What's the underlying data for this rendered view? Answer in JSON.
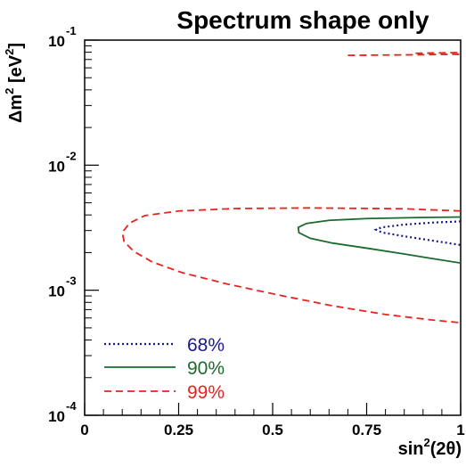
{
  "chart_data": {
    "type": "line",
    "title": "Spectrum shape only",
    "xlabel": {
      "base": "sin",
      "sup": "2",
      "rest": "(2θ)"
    },
    "ylabel": {
      "delta": "Δm",
      "sup1": "2",
      "mid": " [eV",
      "sup2": "2",
      "end": "]"
    },
    "xlim": [
      0,
      1
    ],
    "ylim": [
      0.0001,
      0.1
    ],
    "yscale": "log",
    "x_ticks": [
      {
        "value": 0,
        "label": "0"
      },
      {
        "value": 0.25,
        "label": "0.25"
      },
      {
        "value": 0.5,
        "label": "0.5"
      },
      {
        "value": 0.75,
        "label": "0.75"
      },
      {
        "value": 1,
        "label": "1"
      }
    ],
    "y_ticks": [
      {
        "value": 0.1,
        "base": "10",
        "exp": "-1"
      },
      {
        "value": 0.01,
        "base": "10",
        "exp": "-2"
      },
      {
        "value": 0.001,
        "base": "10",
        "exp": "-3"
      },
      {
        "value": 0.0001,
        "base": "10",
        "exp": "-4"
      }
    ],
    "legend_position": "bottom-left",
    "series": [
      {
        "name": "68%",
        "color": "#1a1a8c",
        "style": "dotted",
        "label_color": "#1a1a8c",
        "segments": [
          [
            [
              1.0,
              0.00355
            ],
            [
              0.93,
              0.00348
            ],
            [
              0.85,
              0.00335
            ],
            [
              0.79,
              0.00318
            ],
            [
              0.775,
              0.00305
            ],
            [
              0.79,
              0.0029
            ],
            [
              0.85,
              0.0027
            ],
            [
              0.93,
              0.00248
            ],
            [
              1.0,
              0.0023
            ]
          ]
        ]
      },
      {
        "name": "90%",
        "color": "#1a6b2e",
        "style": "solid",
        "label_color": "#1a6b2e",
        "segments": [
          [
            [
              1.0,
              0.00385
            ],
            [
              0.9,
              0.00382
            ],
            [
              0.75,
              0.00374
            ],
            [
              0.65,
              0.00362
            ],
            [
              0.59,
              0.00342
            ],
            [
              0.568,
              0.00318
            ],
            [
              0.57,
              0.00288
            ],
            [
              0.6,
              0.0026
            ],
            [
              0.66,
              0.00238
            ],
            [
              0.75,
              0.00217
            ],
            [
              0.85,
              0.00195
            ],
            [
              0.93,
              0.00178
            ],
            [
              1.0,
              0.00165
            ]
          ]
        ]
      },
      {
        "name": "99%",
        "color": "#e8231f",
        "style": "dashed",
        "label_color": "#e8231f",
        "segments": [
          [
            [
              1.0,
              0.0043
            ],
            [
              0.85,
              0.00448
            ],
            [
              0.6,
              0.00455
            ],
            [
              0.4,
              0.0045
            ],
            [
              0.25,
              0.0043
            ],
            [
              0.16,
              0.00395
            ],
            [
              0.12,
              0.00345
            ],
            [
              0.1,
              0.0029
            ],
            [
              0.105,
              0.00245
            ],
            [
              0.13,
              0.00205
            ],
            [
              0.18,
              0.00168
            ],
            [
              0.26,
              0.00138
            ],
            [
              0.38,
              0.00112
            ],
            [
              0.52,
              0.00091
            ],
            [
              0.66,
              0.00075
            ],
            [
              0.8,
              0.00064
            ],
            [
              0.92,
              0.00058
            ],
            [
              1.0,
              0.00055
            ]
          ],
          [
            [
              0.7,
              0.0755
            ],
            [
              0.85,
              0.0762
            ],
            [
              1.0,
              0.077
            ]
          ],
          [
            [
              0.88,
              0.0785
            ],
            [
              1.0,
              0.0795
            ]
          ]
        ]
      }
    ]
  }
}
